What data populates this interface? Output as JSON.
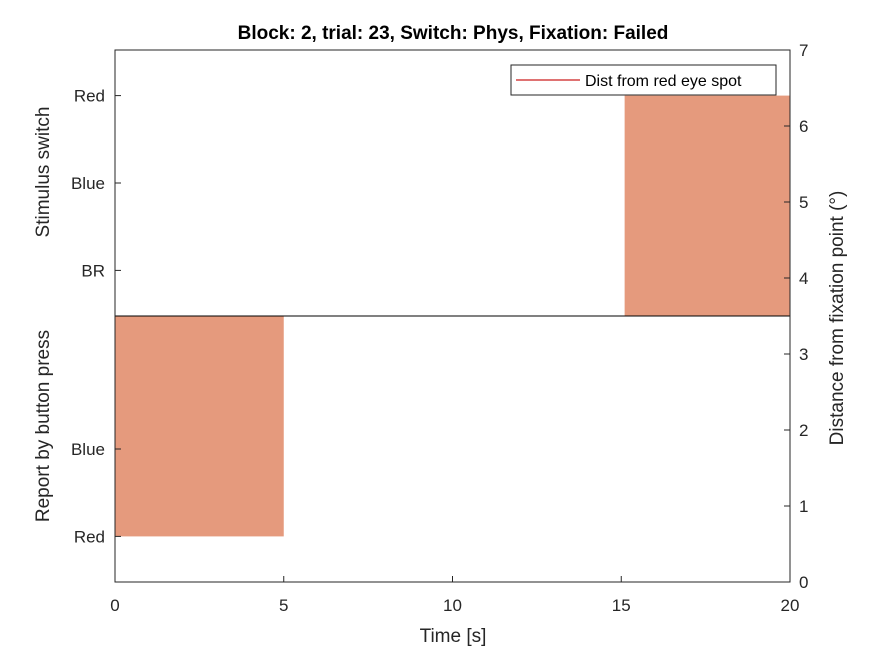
{
  "chart_data": {
    "type": "area",
    "title": "Block: 2, trial: 23, Switch: Phys, Fixation: Failed",
    "xlabel": "Time [s]",
    "xlim": [
      0,
      20
    ],
    "xticks": [
      0,
      5,
      10,
      15,
      20
    ],
    "y_right": {
      "label": "Distance from fixation point (°)",
      "lim": [
        0,
        7
      ],
      "ticks": [
        0,
        1,
        2,
        3,
        4,
        5,
        6,
        7
      ]
    },
    "upper_panel": {
      "ylabel": "Stimulus switch",
      "ticks": [
        {
          "label": "Red",
          "level": 6.4
        },
        {
          "label": "Blue",
          "level": 5.25
        },
        {
          "label": "BR",
          "level": 4.1
        }
      ]
    },
    "lower_panel": {
      "ylabel": "Report by button press",
      "ticks": [
        {
          "label": "Blue",
          "level": 1.75
        },
        {
          "label": "Red",
          "level": 0.6
        }
      ]
    },
    "divider_level": 3.5,
    "blocks": [
      {
        "panel": "upper",
        "x_start": 15.1,
        "x_end": 20,
        "y_start": 3.5,
        "y_end": 6.4,
        "color": "#e59a7d"
      },
      {
        "panel": "lower",
        "x_start": 0,
        "x_end": 5,
        "y_start": 0.6,
        "y_end": 3.5,
        "color": "#e59a7d"
      }
    ],
    "series": [
      {
        "name": "Dist from red eye spot",
        "color": "#cc1f1f",
        "x": [],
        "y": []
      }
    ],
    "legend_position": "top-right"
  }
}
